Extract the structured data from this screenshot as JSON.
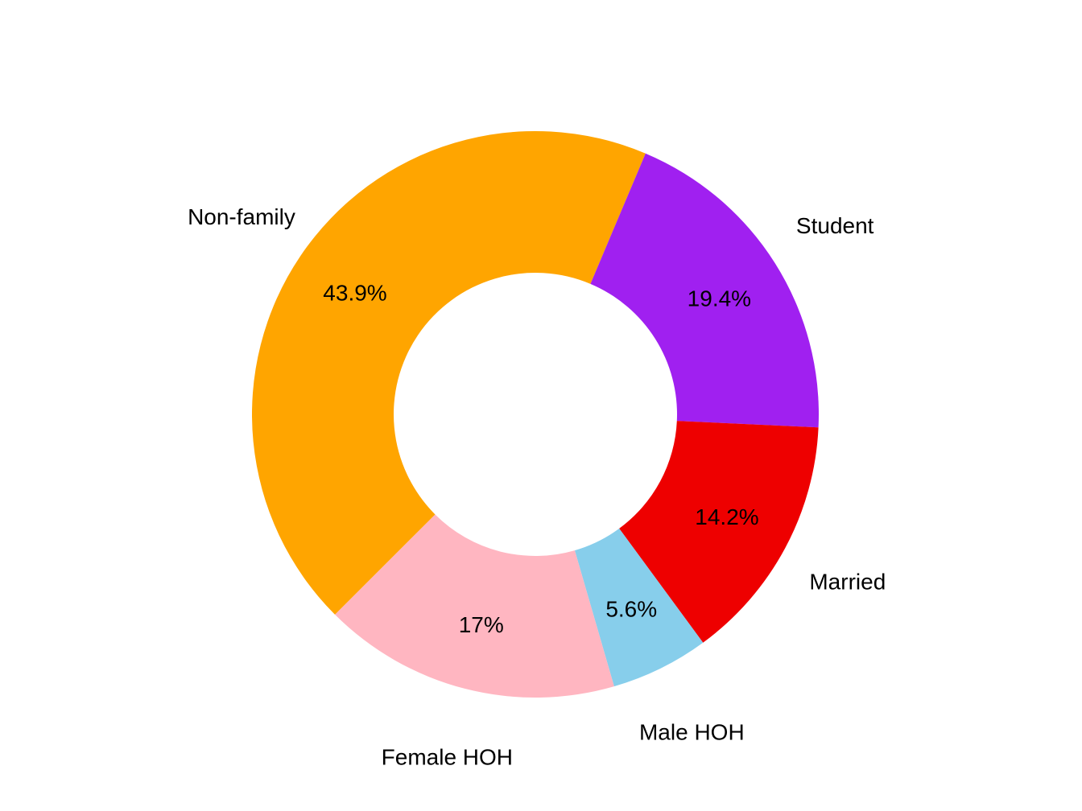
{
  "chart_data": {
    "type": "pie",
    "variant": "donut",
    "categories": [
      "Non-family",
      "Student",
      "Married",
      "Male HOH",
      "Female HOH"
    ],
    "values": [
      43.9,
      19.4,
      14.2,
      5.6,
      17
    ],
    "percent_labels": [
      "43.9%",
      "19.4%",
      "14.2%",
      "5.6%",
      "17%"
    ],
    "colors": [
      "#ffa500",
      "#a020f0",
      "#ee0000",
      "#87ceeb",
      "#ffb6c1"
    ],
    "title": "",
    "legend": "none"
  }
}
